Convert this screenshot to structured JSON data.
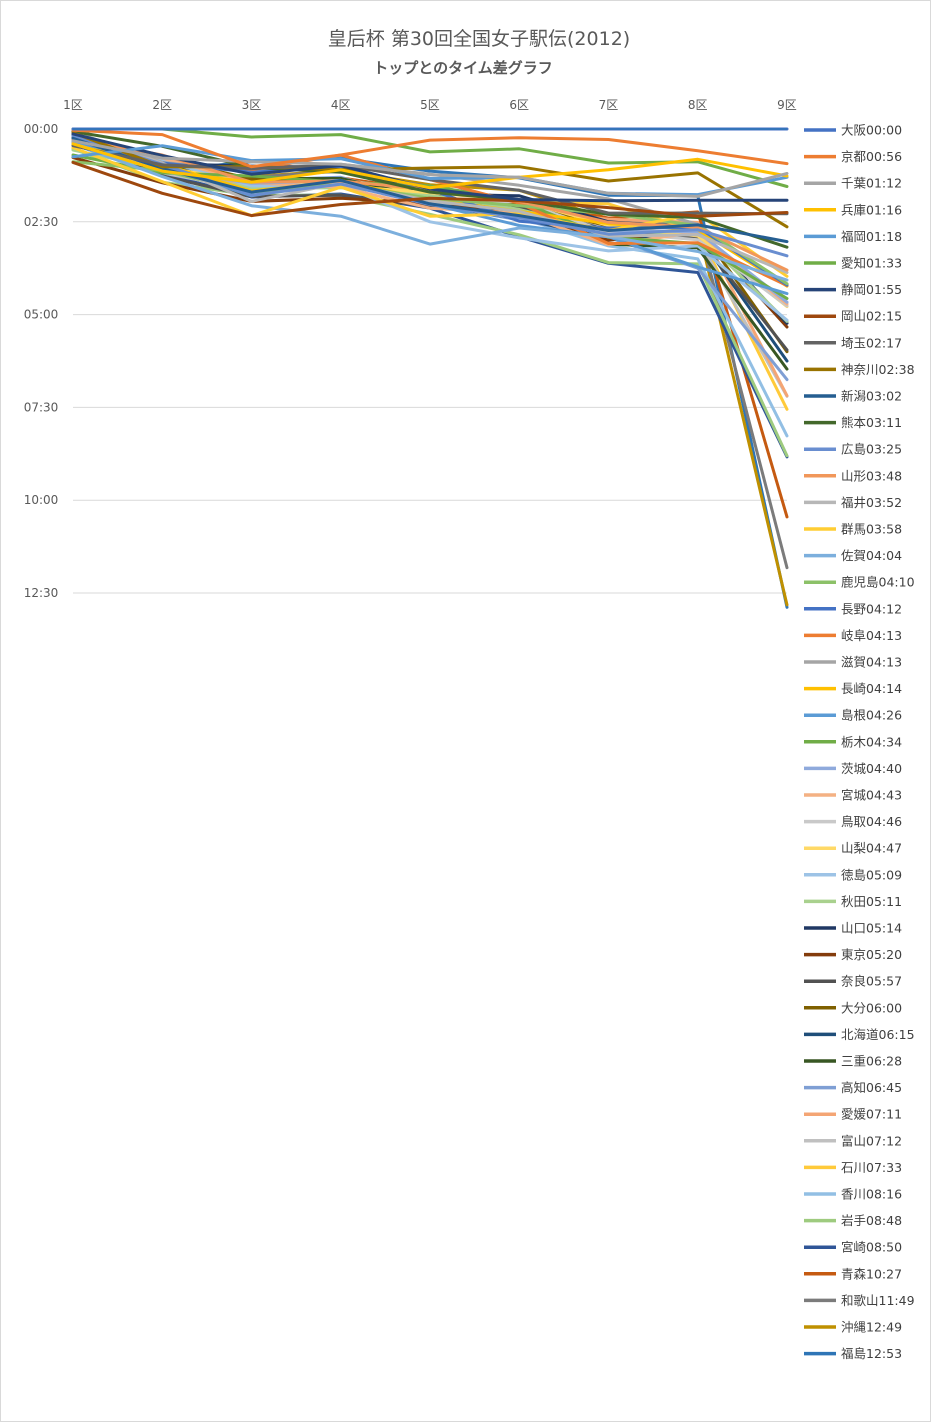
{
  "chart_data": {
    "type": "line",
    "title": "皇后杯 第30回全国女子駅伝(2012)",
    "subtitle": "トップとのタイム差グラフ",
    "categories": [
      "1区",
      "2区",
      "3区",
      "4区",
      "5区",
      "6区",
      "7区",
      "8区",
      "9区"
    ],
    "y_ticks": [
      "00:00",
      "02:30",
      "05:00",
      "07:30",
      "10:00",
      "12:30"
    ],
    "ylim": [
      0,
      780
    ],
    "y_reversed": true,
    "grid": true,
    "legend_position": "right",
    "series": [
      {
        "name": "大阪00:00",
        "color": "#4472C4",
        "values": [
          0,
          0,
          0,
          0,
          0,
          0,
          0,
          0,
          0
        ]
      },
      {
        "name": "京都00:56",
        "color": "#ED7D31",
        "values": [
          2,
          9,
          61,
          42,
          18,
          14,
          17,
          35,
          56
        ]
      },
      {
        "name": "千葉01:12",
        "color": "#A5A5A5",
        "values": [
          19,
          47,
          53,
          57,
          74,
          78,
          104,
          109,
          72
        ]
      },
      {
        "name": "兵庫01:16",
        "color": "#FFC000",
        "values": [
          24,
          68,
          86,
          66,
          95,
          78,
          66,
          49,
          76
        ]
      },
      {
        "name": "福岡01:18",
        "color": "#5B9BD5",
        "values": [
          45,
          27,
          51,
          48,
          80,
          78,
          104,
          106,
          78
        ]
      },
      {
        "name": "愛知01:33",
        "color": "#70AD47",
        "values": [
          0,
          0,
          13,
          9,
          37,
          32,
          55,
          53,
          93
        ]
      },
      {
        "name": "静岡01:55",
        "color": "#264478",
        "values": [
          8,
          43,
          73,
          59,
          97,
          114,
          116,
          115,
          115
        ]
      },
      {
        "name": "岡山02:15",
        "color": "#9E480E",
        "values": [
          54,
          104,
          140,
          122,
          112,
          116,
          127,
          141,
          135
        ]
      },
      {
        "name": "埼玉02:17",
        "color": "#636363",
        "values": [
          27,
          58,
          64,
          58,
          82,
          99,
          136,
          136,
          137
        ]
      },
      {
        "name": "神奈川02:38",
        "color": "#997300",
        "values": [
          6,
          61,
          61,
          66,
          63,
          61,
          84,
          71,
          158
        ]
      },
      {
        "name": "新潟03:02",
        "color": "#255E91",
        "values": [
          15,
          64,
          102,
          83,
          121,
          140,
          164,
          155,
          182
        ]
      },
      {
        "name": "熊本03:11",
        "color": "#43682B",
        "values": [
          4,
          28,
          62,
          70,
          102,
          115,
          138,
          143,
          191
        ]
      },
      {
        "name": "広島03:25",
        "color": "#698ED0",
        "values": [
          12,
          57,
          107,
          89,
          122,
          143,
          170,
          163,
          205
        ]
      },
      {
        "name": "山形03:48",
        "color": "#F1975A",
        "values": [
          16,
          42,
          86,
          84,
          98,
          117,
          151,
          159,
          228
        ]
      },
      {
        "name": "福井03:52",
        "color": "#B7B7B7",
        "values": [
          6,
          55,
          117,
          87,
          116,
          133,
          173,
          171,
          232
        ]
      },
      {
        "name": "群馬03:58",
        "color": "#FFCD33",
        "values": [
          30,
          85,
          140,
          94,
          141,
          137,
          164,
          137,
          238
        ]
      },
      {
        "name": "佐賀04:04",
        "color": "#7CAFDD",
        "values": [
          24,
          77,
          124,
          141,
          186,
          160,
          174,
          198,
          244
        ]
      },
      {
        "name": "鹿児島04:10",
        "color": "#8CC168",
        "values": [
          53,
          67,
          102,
          89,
          112,
          124,
          137,
          156,
          250
        ]
      },
      {
        "name": "長野04:12",
        "color": "#4472C4",
        "values": [
          10,
          55,
          70,
          61,
          98,
          149,
          160,
          159,
          252
        ]
      },
      {
        "name": "岐阜04:13",
        "color": "#ED7D31",
        "values": [
          16,
          56,
          66,
          42,
          82,
          120,
          185,
          184,
          253
        ]
      },
      {
        "name": "滋賀04:13",
        "color": "#A5A5A5",
        "values": [
          4,
          54,
          69,
          57,
          73,
          91,
          113,
          154,
          253
        ]
      },
      {
        "name": "長崎04:14",
        "color": "#FFC000",
        "values": [
          26,
          57,
          100,
          85,
          114,
          133,
          153,
          163,
          254
        ]
      },
      {
        "name": "島根04:26",
        "color": "#5B9BD5",
        "values": [
          19,
          60,
          108,
          85,
          121,
          156,
          174,
          223,
          266
        ]
      },
      {
        "name": "栃木04:34",
        "color": "#70AD47",
        "values": [
          42,
          71,
          76,
          86,
          92,
          117,
          175,
          185,
          274
        ]
      },
      {
        "name": "茨城04:40",
        "color": "#8FAADC",
        "values": [
          9,
          66,
          88,
          83,
          121,
          145,
          164,
          166,
          280
        ]
      },
      {
        "name": "宮城04:43",
        "color": "#F4B183",
        "values": [
          23,
          47,
          87,
          94,
          128,
          136,
          187,
          167,
          283
        ]
      },
      {
        "name": "鳥取04:46",
        "color": "#C9C9C9",
        "values": [
          25,
          61,
          100,
          86,
          121,
          117,
          167,
          179,
          286
        ]
      },
      {
        "name": "山梨04:47",
        "color": "#FFD966",
        "values": [
          17,
          61,
          87,
          92,
          103,
          115,
          156,
          173,
          287
        ]
      },
      {
        "name": "徳島05:09",
        "color": "#9DC3E6",
        "values": [
          11,
          51,
          92,
          91,
          150,
          176,
          197,
          189,
          309
        ]
      },
      {
        "name": "秋田05:11",
        "color": "#A9D18E",
        "values": [
          34,
          65,
          96,
          95,
          107,
          130,
          165,
          169,
          311
        ]
      },
      {
        "name": "山口05:14",
        "color": "#203864",
        "values": [
          14,
          56,
          60,
          62,
          105,
          108,
          150,
          160,
          314
        ]
      },
      {
        "name": "東京05:20",
        "color": "#843C0C",
        "values": [
          46,
          87,
          117,
          112,
          120,
          135,
          180,
          161,
          320
        ]
      },
      {
        "name": "奈良05:57",
        "color": "#525252",
        "values": [
          9,
          76,
          109,
          107,
          125,
          127,
          163,
          175,
          357
        ]
      },
      {
        "name": "大分06:00",
        "color": "#7F6000",
        "values": [
          18,
          47,
          81,
          89,
          116,
          122,
          157,
          157,
          360
        ]
      },
      {
        "name": "北海道06:15",
        "color": "#1F4E79",
        "values": [
          3,
          62,
          81,
          86,
          122,
          145,
          176,
          171,
          375
        ]
      },
      {
        "name": "三重06:28",
        "color": "#385723",
        "values": [
          14,
          56,
          80,
          80,
          112,
          133,
          186,
          192,
          388
        ]
      },
      {
        "name": "高知06:45",
        "color": "#7F9FD4",
        "values": [
          8,
          60,
          83,
          78,
          122,
          147,
          175,
          225,
          405
        ]
      },
      {
        "name": "愛媛07:11",
        "color": "#F4A574",
        "values": [
          13,
          69,
          90,
          79,
          112,
          130,
          146,
          151,
          431
        ]
      },
      {
        "name": "富山07:12",
        "color": "#C0C0C0",
        "values": [
          7,
          71,
          99,
          92,
          114,
          131,
          156,
          177,
          432
        ]
      },
      {
        "name": "石川07:33",
        "color": "#FFCA3A",
        "values": [
          15,
          58,
          93,
          92,
          100,
          117,
          121,
          165,
          453
        ]
      },
      {
        "name": "香川08:16",
        "color": "#92BFE4",
        "values": [
          14,
          58,
          81,
          82,
          101,
          143,
          189,
          210,
          496
        ]
      },
      {
        "name": "岩手08:48",
        "color": "#9ECB7F",
        "values": [
          32,
          86,
          107,
          107,
          138,
          171,
          216,
          218,
          528
        ]
      },
      {
        "name": "宮崎08:50",
        "color": "#2F5597",
        "values": [
          25,
          72,
          110,
          105,
          128,
          174,
          217,
          232,
          530
        ]
      },
      {
        "name": "青森10:27",
        "color": "#C55A11",
        "values": [
          17,
          69,
          83,
          79,
          100,
          116,
          144,
          134,
          627
        ]
      },
      {
        "name": "和歌山11:49",
        "color": "#7B7B7B",
        "values": [
          23,
          68,
          78,
          68,
          93,
          114,
          149,
          153,
          709
        ]
      },
      {
        "name": "沖縄12:49",
        "color": "#BF9000",
        "values": [
          15,
          68,
          77,
          67,
          90,
          99,
          145,
          156,
          769
        ]
      },
      {
        "name": "福島12:53",
        "color": "#2E75B6",
        "values": [
          21,
          67,
          53,
          47,
          68,
          79,
          107,
          108,
          773
        ]
      }
    ]
  }
}
